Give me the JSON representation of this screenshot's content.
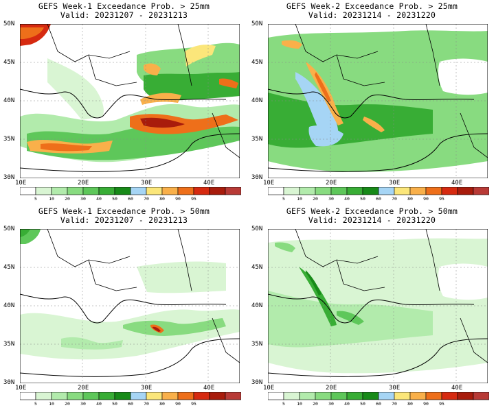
{
  "colorbar": {
    "ticks": [
      "5",
      "10",
      "20",
      "30",
      "40",
      "50",
      "60",
      "70",
      "80",
      "90",
      "95"
    ],
    "colors": [
      "#ffffff",
      "#d9f5d3",
      "#b2ebac",
      "#88db80",
      "#5ec75a",
      "#38ad35",
      "#178a18",
      "#a6d5f5",
      "#fbe67a",
      "#f9b04a",
      "#ee6f1a",
      "#d62a10",
      "#a81c0c",
      "#b83a36"
    ]
  },
  "axes": {
    "lat_labels": [
      "50N",
      "45N",
      "40N",
      "35N",
      "30N"
    ],
    "lon_labels": [
      "10E",
      "20E",
      "30E",
      "40E"
    ]
  },
  "panels": [
    {
      "title": "GEFS Week-1 Exceedance Prob. > 25mm",
      "valid": "Valid: 20231207 - 20231213"
    },
    {
      "title": "GEFS Week-2 Exceedance Prob. > 25mm",
      "valid": "Valid: 20231214 - 20231220"
    },
    {
      "title": "GEFS Week-1 Exceedance Prob. > 50mm",
      "valid": "Valid: 20231207 - 20231213"
    },
    {
      "title": "GEFS Week-2 Exceedance Prob. > 50mm",
      "valid": "Valid: 20231214 - 20231220"
    }
  ]
}
